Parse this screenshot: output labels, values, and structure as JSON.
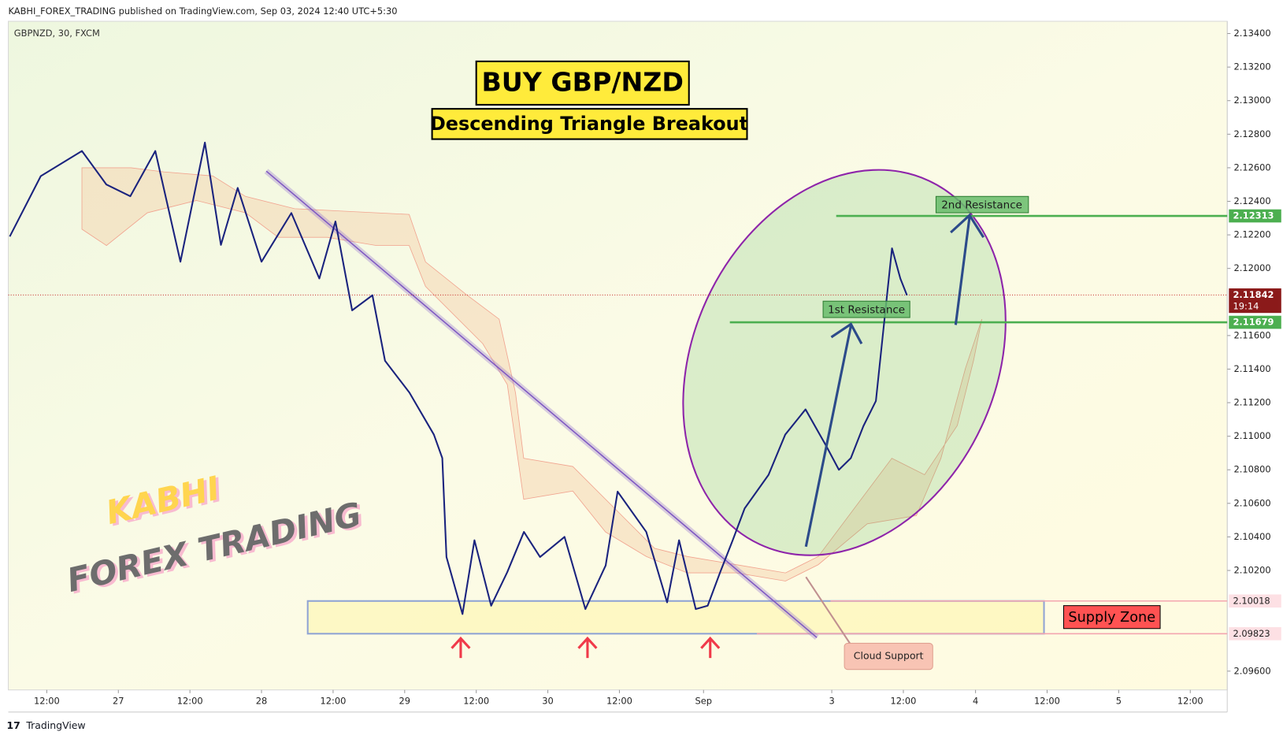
{
  "header": {
    "text": "KABHI_FOREX_TRADING published on TradingView.com, Sep 03, 2024 12:40 UTC+5:30"
  },
  "footer": {
    "text": "TradingView"
  },
  "chart_data": {
    "type": "line",
    "symbol": "GBPNZD, 30, FXCM",
    "title": "BUY GBP/NZD",
    "subtitle": "Descending Triangle Breakout",
    "watermark": [
      "KABHI",
      "FOREX TRADING"
    ],
    "annotations": {
      "first_resistance": "1st Resistance",
      "second_resistance": "2nd Resistance",
      "supply_zone": "Supply Zone",
      "cloud_support": "Cloud Support"
    },
    "color": "#1a237e",
    "x": [
      -6.2,
      -1,
      5.9,
      10,
      14,
      18.2,
      22.4,
      26.5,
      29.2,
      32,
      36,
      41,
      45.7,
      48.4,
      51.2,
      54.6,
      56.7,
      60.8,
      64.9,
      66.3,
      67,
      69.7,
      71.7,
      74.5,
      77.2,
      80,
      82.7,
      86.8,
      90.3,
      93.7,
      95.7,
      100.5,
      104,
      106,
      108.8,
      110.8,
      112.9,
      115,
      117,
      121,
      123.8,
      127.2,
      130.7,
      132.8,
      134.8,
      136.9,
      139,
      140.3,
      141.7,
      143.1,
      144.2
    ],
    "values": [
      2.1219,
      2.1255,
      2.127,
      2.125,
      2.1243,
      2.127,
      2.1204,
      2.1275,
      2.1214,
      2.1248,
      2.1204,
      2.1233,
      2.1194,
      2.1228,
      2.1175,
      2.1184,
      2.1145,
      2.1126,
      2.1101,
      2.1087,
      2.1028,
      2.0994,
      2.1038,
      2.0999,
      2.1019,
      2.1043,
      2.1028,
      2.104,
      2.0997,
      2.1023,
      2.1067,
      2.1043,
      2.1001,
      2.1038,
      2.0997,
      2.0999,
      2.1019,
      2.1038,
      2.1057,
      2.1077,
      2.1101,
      2.1116,
      2.1094,
      2.108,
      2.1087,
      2.1106,
      2.1121,
      2.1165,
      2.1212,
      2.1194,
      2.1184
    ],
    "resistance_levels": [
      2.11679,
      2.12313
    ],
    "supply_zone": [
      2.09823,
      2.10018
    ],
    "last_price": 2.11842,
    "countdown": "19:14",
    "trendline": {
      "x": [
        36.8,
        129.1
      ],
      "values": [
        2.1258,
        2.098
      ]
    },
    "xlim": [
      -6.45,
      197.9
    ],
    "ylim": [
      2.09488,
      2.13473
    ],
    "xticks": [
      {
        "value": 0,
        "label": "12:00"
      },
      {
        "value": 12,
        "label": "27"
      },
      {
        "value": 24,
        "label": "12:00"
      },
      {
        "value": 36,
        "label": "28"
      },
      {
        "value": 48,
        "label": "12:00"
      },
      {
        "value": 60,
        "label": "29"
      },
      {
        "value": 72,
        "label": "12:00"
      },
      {
        "value": 84,
        "label": "30"
      },
      {
        "value": 96,
        "label": "12:00"
      },
      {
        "value": 110.1,
        "label": "Sep"
      },
      {
        "value": 131.6,
        "label": "3"
      },
      {
        "value": 143.6,
        "label": "12:00"
      },
      {
        "value": 155.7,
        "label": "4"
      },
      {
        "value": 167.7,
        "label": "12:00"
      },
      {
        "value": 179.7,
        "label": "5"
      },
      {
        "value": 191.7,
        "label": "12:00"
      }
    ],
    "yticks": [
      {
        "value": 2.134,
        "label": "2.13400"
      },
      {
        "value": 2.132,
        "label": "2.13200"
      },
      {
        "value": 2.13,
        "label": "2.13000"
      },
      {
        "value": 2.128,
        "label": "2.12800"
      },
      {
        "value": 2.126,
        "label": "2.12600"
      },
      {
        "value": 2.124,
        "label": "2.12400"
      },
      {
        "value": 2.122,
        "label": "2.12200"
      },
      {
        "value": 2.12,
        "label": "2.12000"
      },
      {
        "value": 2.116,
        "label": "2.11600"
      },
      {
        "value": 2.114,
        "label": "2.11400"
      },
      {
        "value": 2.112,
        "label": "2.11200"
      },
      {
        "value": 2.11,
        "label": "2.11000"
      },
      {
        "value": 2.108,
        "label": "2.10800"
      },
      {
        "value": 2.106,
        "label": "2.10600"
      },
      {
        "value": 2.104,
        "label": "2.10400"
      },
      {
        "value": 2.102,
        "label": "2.10200"
      },
      {
        "value": 2.096,
        "label": "2.09600"
      }
    ]
  }
}
